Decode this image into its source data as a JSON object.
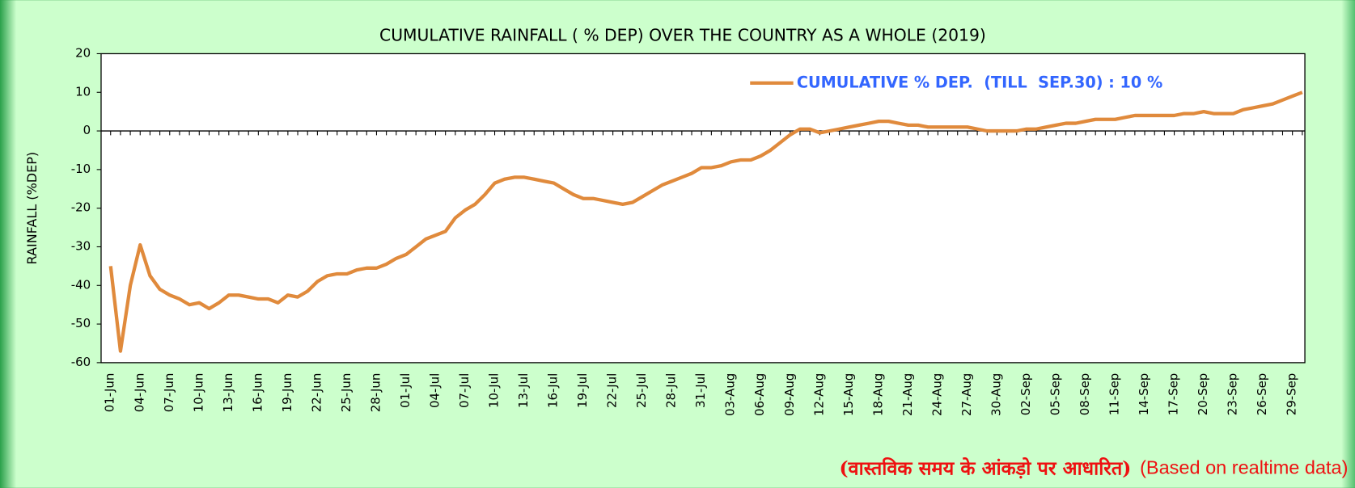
{
  "chart_data": {
    "type": "line",
    "title": "CUMULATIVE RAINFALL ( % DEP) OVER THE COUNTRY AS A WHOLE (2019)",
    "y_label": "RAINFALL  (%DEP)",
    "note_hindi": "(वास्तविक समय के आंकड़ो पर आधारित)",
    "note_english": "(Based on realtime data)",
    "categories": [
      "01-Jun",
      null,
      null,
      "04-Jun",
      null,
      null,
      "07-Jun",
      null,
      null,
      "10-Jun",
      null,
      null,
      "13-Jun",
      null,
      null,
      "16-Jun",
      null,
      null,
      "19-Jun",
      null,
      null,
      "22-Jun",
      null,
      null,
      "25-Jun",
      null,
      null,
      "28-Jun",
      null,
      null,
      "01-Jul",
      null,
      null,
      "04-Jul",
      null,
      null,
      "07-Jul",
      null,
      null,
      "10-Jul",
      null,
      null,
      "13-Jul",
      null,
      null,
      "16-Jul",
      null,
      null,
      "19-Jul",
      null,
      null,
      "22-Jul",
      null,
      null,
      "25-Jul",
      null,
      null,
      "28-Jul",
      null,
      null,
      "31-Jul",
      null,
      null,
      "03-Aug",
      null,
      null,
      "06-Aug",
      null,
      null,
      "09-Aug",
      null,
      null,
      "12-Aug",
      null,
      null,
      "15-Aug",
      null,
      null,
      "18-Aug",
      null,
      null,
      "21-Aug",
      null,
      null,
      "24-Aug",
      null,
      null,
      "27-Aug",
      null,
      null,
      "30-Aug",
      null,
      null,
      "02-Sep",
      null,
      null,
      "05-Sep",
      null,
      null,
      "08-Sep",
      null,
      null,
      "11-Sep",
      null,
      null,
      "14-Sep",
      null,
      null,
      "17-Sep",
      null,
      null,
      "20-Sep",
      null,
      null,
      "23-Sep",
      null,
      null,
      "26-Sep",
      null,
      null,
      "29-Sep",
      null
    ],
    "series": [
      {
        "name": "CUMULATIVE % DEP.  (TILL  SEP.30) : 10 %",
        "color": "#e08a3c",
        "values": [
          -35,
          -57,
          -40,
          -29.5,
          -37.5,
          -41,
          -42.5,
          -43.5,
          -45,
          -44.5,
          -46,
          -44.5,
          -42.5,
          -42.5,
          -43,
          -43.5,
          -43.5,
          -44.5,
          -42.5,
          -43,
          -41.5,
          -39,
          -37.5,
          -37,
          -37,
          -36,
          -35.5,
          -35.5,
          -34.5,
          -33,
          -32,
          -30,
          -28,
          -27,
          -26,
          -22.5,
          -20.5,
          -19,
          -16.5,
          -13.5,
          -12.5,
          -12,
          -12,
          -12.5,
          -13,
          -13.5,
          -15,
          -16.5,
          -17.5,
          -17.5,
          -18,
          -18.5,
          -19,
          -18.5,
          -17,
          -15.5,
          -14,
          -13,
          -12,
          -11,
          -9.5,
          -9.5,
          -9,
          -8,
          -7.5,
          -7.5,
          -6.5,
          -5,
          -3,
          -1,
          0.5,
          0.5,
          -0.5,
          0,
          0.5,
          1,
          1.5,
          2,
          2.5,
          2.5,
          2,
          1.5,
          1.5,
          1,
          1,
          1,
          1,
          1,
          0.5,
          0,
          0,
          0,
          0,
          0.5,
          0.5,
          1,
          1.5,
          2,
          2,
          2.5,
          3,
          3,
          3,
          3.5,
          4,
          4,
          4,
          4,
          4,
          4.5,
          4.5,
          5,
          4.5,
          4.5,
          4.5,
          5.5,
          6,
          6.5,
          7,
          8,
          9,
          10
        ]
      }
    ],
    "ylim": [
      -60,
      20
    ],
    "yticks": [
      -60,
      -50,
      -40,
      -30,
      -20,
      -10,
      0,
      10,
      20
    ],
    "legend": "top-right",
    "grid": false
  }
}
